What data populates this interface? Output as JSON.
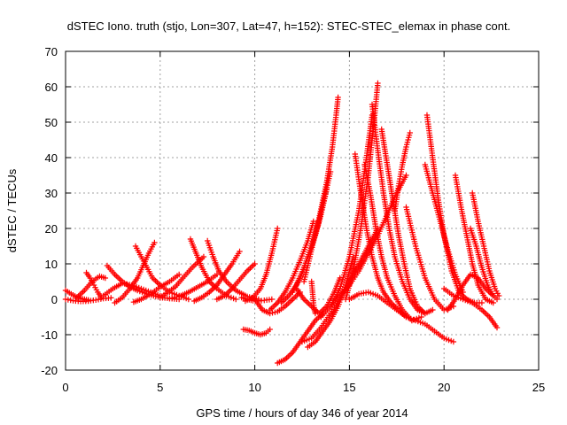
{
  "chart_data": {
    "type": "scatter",
    "title": "dSTEC Iono. truth (stjo, Lon=307, Lat=47, h=152): STEC-STEC_elemax in phase cont.",
    "xlabel": "GPS time / hours of day 346 of year 2014",
    "ylabel": "dSTEC  / TECUs",
    "xlim": [
      0,
      25
    ],
    "ylim": [
      -20,
      70
    ],
    "xticks": [
      0,
      5,
      10,
      15,
      20,
      25
    ],
    "yticks": [
      -20,
      -10,
      0,
      10,
      20,
      30,
      40,
      50,
      60,
      70
    ],
    "grid": true,
    "marker": "plus",
    "color": "#ff0000",
    "series": [
      {
        "x": [
          0,
          0.4,
          0.8,
          1.2,
          1.6,
          2.0,
          2.4
        ],
        "y": [
          0,
          -0.4,
          -0.6,
          -0.5,
          -0.2,
          0.2,
          0.4
        ]
      },
      {
        "x": [
          0,
          0.3,
          0.6,
          0.9,
          1.2
        ],
        "y": [
          2.5,
          1.5,
          0.6,
          0.1,
          -0.2
        ]
      },
      {
        "x": [
          1.1,
          1.3,
          1.5,
          1.7,
          1.9
        ],
        "y": [
          7.5,
          6.0,
          4.0,
          2.0,
          0.5
        ]
      },
      {
        "x": [
          0.6,
          1.0,
          1.4,
          1.8,
          2.1
        ],
        "y": [
          0.5,
          2.5,
          5.0,
          6.5,
          6.0
        ]
      },
      {
        "x": [
          2.2,
          2.6,
          3.0,
          3.4,
          3.8,
          4.3,
          5.0,
          6.0
        ],
        "y": [
          9.5,
          7.0,
          5.0,
          3.5,
          2.5,
          1.5,
          0.5,
          0
        ]
      },
      {
        "x": [
          2.0,
          2.5,
          3.0,
          3.5,
          4.0,
          4.5,
          5.0
        ],
        "y": [
          1.0,
          3.0,
          4.5,
          4.0,
          3.0,
          2.0,
          1.0
        ]
      },
      {
        "x": [
          3.7,
          4.0,
          4.3,
          4.6,
          5.0,
          5.5,
          6.0,
          6.5
        ],
        "y": [
          15,
          12,
          9,
          6,
          4,
          2,
          1,
          0
        ]
      },
      {
        "x": [
          2.6,
          3.0,
          3.4,
          3.8,
          4.1,
          4.4,
          4.7
        ],
        "y": [
          -1.0,
          0.5,
          3.0,
          6.0,
          9.5,
          13,
          16
        ]
      },
      {
        "x": [
          3.6,
          4.0,
          4.5,
          5.0,
          5.5,
          6.0
        ],
        "y": [
          -0.8,
          0,
          1.5,
          3.5,
          5.0,
          7.0
        ]
      },
      {
        "x": [
          5.0,
          5.4,
          5.8,
          6.2,
          6.7,
          7.3
        ],
        "y": [
          0.5,
          2.0,
          3.5,
          6.0,
          9.0,
          12
        ]
      },
      {
        "x": [
          6.6,
          6.9,
          7.2,
          7.6,
          8.0,
          8.5,
          9.0
        ],
        "y": [
          17,
          13,
          9,
          5,
          3,
          1,
          0
        ]
      },
      {
        "x": [
          7.5,
          7.8,
          8.1,
          8.5,
          9.0,
          9.6,
          10.2
        ],
        "y": [
          16.5,
          12,
          8,
          5,
          2.5,
          0.8,
          0
        ]
      },
      {
        "x": [
          6.8,
          7.2,
          7.6,
          8.0,
          8.4,
          8.8,
          9.2
        ],
        "y": [
          -0.5,
          0.5,
          2.0,
          4.0,
          7.0,
          10,
          13.5
        ]
      },
      {
        "x": [
          5.5,
          6.0,
          6.5,
          7.0,
          7.5,
          8.0
        ],
        "y": [
          0.2,
          0.8,
          2.0,
          3.5,
          5.0,
          7.0
        ]
      },
      {
        "x": [
          8.0,
          8.4,
          8.8,
          9.2,
          9.6,
          10.0
        ],
        "y": [
          0,
          1.0,
          3.0,
          5.5,
          8.0,
          10
        ]
      },
      {
        "x": [
          9.3,
          9.6,
          9.9,
          10.2,
          10.5,
          10.9
        ],
        "y": [
          0.5,
          0,
          -0.4,
          -0.5,
          -0.3,
          0
        ]
      },
      {
        "x": [
          10.0,
          10.4,
          10.8,
          11.2,
          11.6,
          12.0,
          12.4
        ],
        "y": [
          0,
          -3.0,
          -4.0,
          -3.5,
          -2.0,
          0,
          2.0
        ]
      },
      {
        "x": [
          9.5,
          9.9,
          10.3,
          10.6,
          10.9,
          11.2
        ],
        "y": [
          -0.5,
          0.5,
          3.0,
          7.0,
          13,
          20
        ]
      },
      {
        "x": [
          9.4,
          9.7,
          10.0,
          10.3,
          10.6,
          10.8
        ],
        "y": [
          -8.5,
          -8.8,
          -9.5,
          -10,
          -9.5,
          -8.5
        ]
      },
      {
        "x": [
          10.8,
          11.2,
          11.6,
          12.0,
          12.4,
          12.8,
          13.1
        ],
        "y": [
          -3.0,
          -1.0,
          2.0,
          6.0,
          11,
          16.5,
          22
        ]
      },
      {
        "x": [
          11.4,
          11.8,
          12.2,
          12.6,
          13.0,
          13.4,
          13.7,
          14.0
        ],
        "y": [
          -1.0,
          1.0,
          4.0,
          9.0,
          15,
          22,
          29,
          36
        ]
      },
      {
        "x": [
          12.0,
          12.4,
          12.8,
          13.2,
          13.5,
          13.8
        ],
        "y": [
          2.0,
          6.0,
          12,
          18,
          24,
          31
        ]
      },
      {
        "x": [
          11.2,
          11.6,
          12.0,
          12.4,
          12.8,
          13.2,
          13.6
        ],
        "y": [
          -18,
          -17,
          -15,
          -12,
          -9,
          -6,
          -4
        ]
      },
      {
        "x": [
          12.6,
          13.0,
          13.4,
          13.8,
          14.1,
          14.3,
          14.4
        ],
        "y": [
          5,
          14,
          23,
          33,
          43,
          52,
          57
        ]
      },
      {
        "x": [
          13.0,
          13.05,
          13.1,
          13.15,
          13.2
        ],
        "y": [
          5,
          2,
          -1,
          -3,
          -4
        ]
      },
      {
        "x": [
          12.2,
          12.6,
          13.0,
          13.4,
          13.8,
          14.2,
          14.5
        ],
        "y": [
          3,
          0,
          -2,
          -4,
          -2,
          2,
          6
        ]
      },
      {
        "x": [
          12.5,
          13.0,
          13.5,
          14.0,
          14.5,
          15.0,
          15.5,
          16.0,
          16.5
        ],
        "y": [
          -12,
          -11,
          -8,
          -4,
          0,
          5,
          10,
          15,
          20
        ]
      },
      {
        "x": [
          12.8,
          13.2,
          13.6,
          14.0,
          14.4,
          14.8,
          15.2
        ],
        "y": [
          -13.5,
          -12,
          -9,
          -6,
          -2,
          4,
          12
        ]
      },
      {
        "x": [
          13.5,
          14.0,
          14.5,
          15.0,
          15.5,
          16.0,
          16.5,
          17.0,
          17.5,
          18.0
        ],
        "y": [
          -5,
          -2,
          1,
          4,
          8,
          13,
          18,
          24,
          30,
          35
        ]
      },
      {
        "x": [
          14.0,
          14.5,
          15.0,
          15.5,
          15.9,
          16.2
        ],
        "y": [
          -2,
          3,
          12,
          25,
          40,
          52
        ]
      },
      {
        "x": [
          14.8,
          15.2,
          15.6,
          16.0,
          16.3,
          16.5
        ],
        "y": [
          0,
          8,
          20,
          35,
          50,
          61
        ]
      },
      {
        "x": [
          15.3,
          15.6,
          15.9,
          16.2,
          16.5,
          16.8,
          17.2,
          17.6,
          18.0
        ],
        "y": [
          41,
          30,
          20,
          12,
          6,
          2,
          -1,
          -3,
          -5
        ]
      },
      {
        "x": [
          15.8,
          16.1,
          16.4,
          16.7,
          17.0,
          17.4,
          17.8,
          18.3,
          18.8
        ],
        "y": [
          38,
          30,
          20,
          12,
          6,
          1,
          -3,
          -6,
          -5
        ]
      },
      {
        "x": [
          16.2,
          16.5,
          16.8,
          17.1,
          17.4,
          17.8,
          18.2,
          18.6,
          19.0
        ],
        "y": [
          55,
          42,
          30,
          20,
          12,
          5,
          0,
          -3,
          -4
        ]
      },
      {
        "x": [
          16.7,
          17.0,
          17.3,
          17.6,
          17.9,
          18.2,
          18.6,
          19.0,
          19.4
        ],
        "y": [
          48,
          38,
          28,
          18,
          10,
          3,
          -2,
          -4,
          -3
        ]
      },
      {
        "x": [
          17.4,
          17.6,
          17.8,
          18.0,
          18.2
        ],
        "y": [
          25,
          32,
          38,
          43,
          47
        ]
      },
      {
        "x": [
          15.0,
          15.5,
          16.0,
          16.5,
          17.0,
          17.5,
          18.0,
          18.5,
          19.0,
          19.5,
          20.0,
          20.5
        ],
        "y": [
          0,
          1.5,
          2,
          1,
          -1,
          -3,
          -5,
          -6,
          -7,
          -9,
          -11,
          -12
        ]
      },
      {
        "x": [
          18.0,
          18.5,
          19.0,
          19.5,
          20.0,
          20.5
        ],
        "y": [
          26,
          15,
          6,
          0,
          -3,
          -2
        ]
      },
      {
        "x": [
          19.1,
          19.4,
          19.7,
          20.0,
          20.4,
          20.8,
          21.2,
          21.6,
          22.0
        ],
        "y": [
          52,
          40,
          28,
          18,
          8,
          2,
          0,
          -1,
          -1
        ]
      },
      {
        "x": [
          19.0,
          19.4,
          19.8,
          20.2,
          20.6,
          21.0
        ],
        "y": [
          38,
          30,
          22,
          14,
          7,
          2
        ]
      },
      {
        "x": [
          20.6,
          20.9,
          21.2,
          21.5,
          21.8,
          22.2,
          22.6
        ],
        "y": [
          35,
          26,
          18,
          10,
          4,
          0,
          -1
        ]
      },
      {
        "x": [
          21.5,
          21.8,
          22.1,
          22.4,
          22.7,
          22.9
        ],
        "y": [
          30,
          22,
          15,
          8,
          3,
          1
        ]
      },
      {
        "x": [
          21.4,
          21.7,
          22.0,
          22.3,
          22.6,
          22.8
        ],
        "y": [
          20,
          15,
          9,
          4,
          1,
          0
        ]
      },
      {
        "x": [
          20.0,
          20.5,
          21.0,
          21.5,
          22.0,
          22.4,
          22.8
        ],
        "y": [
          3,
          1,
          0,
          -1,
          -3,
          -5,
          -8
        ]
      },
      {
        "x": [
          20.2,
          20.6,
          21.0,
          21.4,
          21.8,
          22.2,
          22.6
        ],
        "y": [
          -3,
          0,
          4,
          7,
          6,
          3,
          1
        ]
      }
    ]
  }
}
